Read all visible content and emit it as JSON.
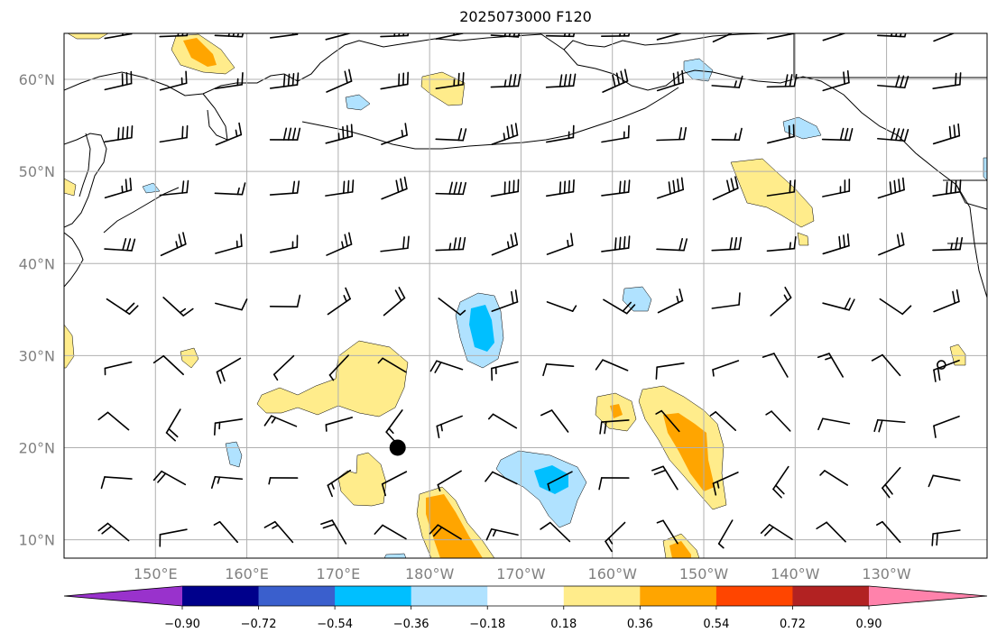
{
  "title": "2025073000 F120",
  "lat_labels": [
    "60°N",
    "50°N",
    "40°N",
    "30°N",
    "20°N",
    "10°N"
  ],
  "lon_labels": [
    "150°E",
    "160°E",
    "170°E",
    "180°W",
    "170°W",
    "160°W",
    "150°W",
    "140°W",
    "130°W"
  ],
  "colorbar": {
    "colors": [
      "#9932cc",
      "#00008b",
      "#3a5fcd",
      "#00bfff",
      "#b0e2ff",
      "#ffffff",
      "#ffec8b",
      "#ffa500",
      "#ff4500",
      "#b22222",
      "#ff82ab"
    ],
    "ticks": [
      "-0.90",
      "-0.72",
      "-0.54",
      "-0.36",
      "-0.18",
      "0.18",
      "0.36",
      "0.54",
      "0.72",
      "0.90"
    ]
  },
  "markers": {
    "storm_center": {
      "lat": 20,
      "lon": 176.5
    },
    "circle_marker": {
      "lat": 29,
      "lon": -124
    }
  },
  "map_extent": {
    "lon": [
      140,
      241
    ],
    "lat": [
      8,
      65
    ]
  },
  "graticule": {
    "lon_step": 10,
    "lat_step": 10
  }
}
